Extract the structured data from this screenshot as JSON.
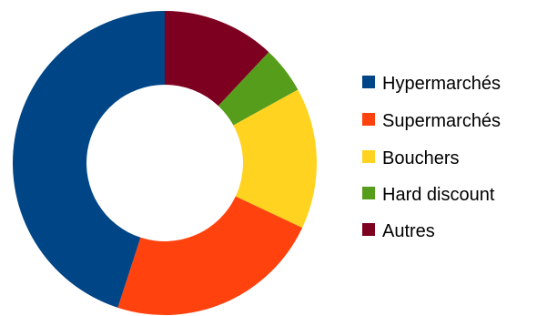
{
  "chart_data": {
    "type": "pie",
    "variant": "donut",
    "title": "",
    "legend": "right",
    "categories": [
      "Hypermarchés",
      "Supermarchés",
      "Bouchers",
      "Hard discount",
      "Autres"
    ],
    "values": [
      45,
      23,
      15,
      5,
      12
    ],
    "colors": [
      "#004586",
      "#ff420e",
      "#ffd320",
      "#579d1c",
      "#7e0021"
    ]
  }
}
